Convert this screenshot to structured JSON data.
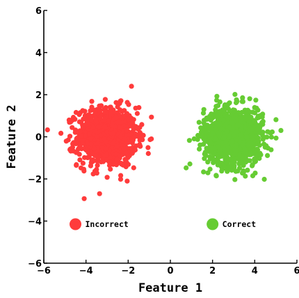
{
  "chart_data": {
    "type": "scatter",
    "xlabel": "Feature 1",
    "ylabel": "Feature 2",
    "xlim": [
      -6,
      6
    ],
    "ylim": [
      -6,
      6
    ],
    "xticks": [
      -6,
      -4,
      -2,
      0,
      2,
      4,
      6
    ],
    "yticks": [
      -6,
      -4,
      -2,
      0,
      2,
      4,
      6
    ],
    "grid": false,
    "legend_placement": "bottom (inside plot, two entries side by side)",
    "series": [
      {
        "name": "Incorrect",
        "color": "#ff3b3b",
        "cluster_center": [
          -3,
          0
        ],
        "approx_spread_sd": 0.7,
        "approx_count": 1000
      },
      {
        "name": "Correct",
        "color": "#66cc33",
        "cluster_center": [
          3,
          0
        ],
        "approx_spread_sd": 0.7,
        "approx_count": 1000
      }
    ]
  }
}
